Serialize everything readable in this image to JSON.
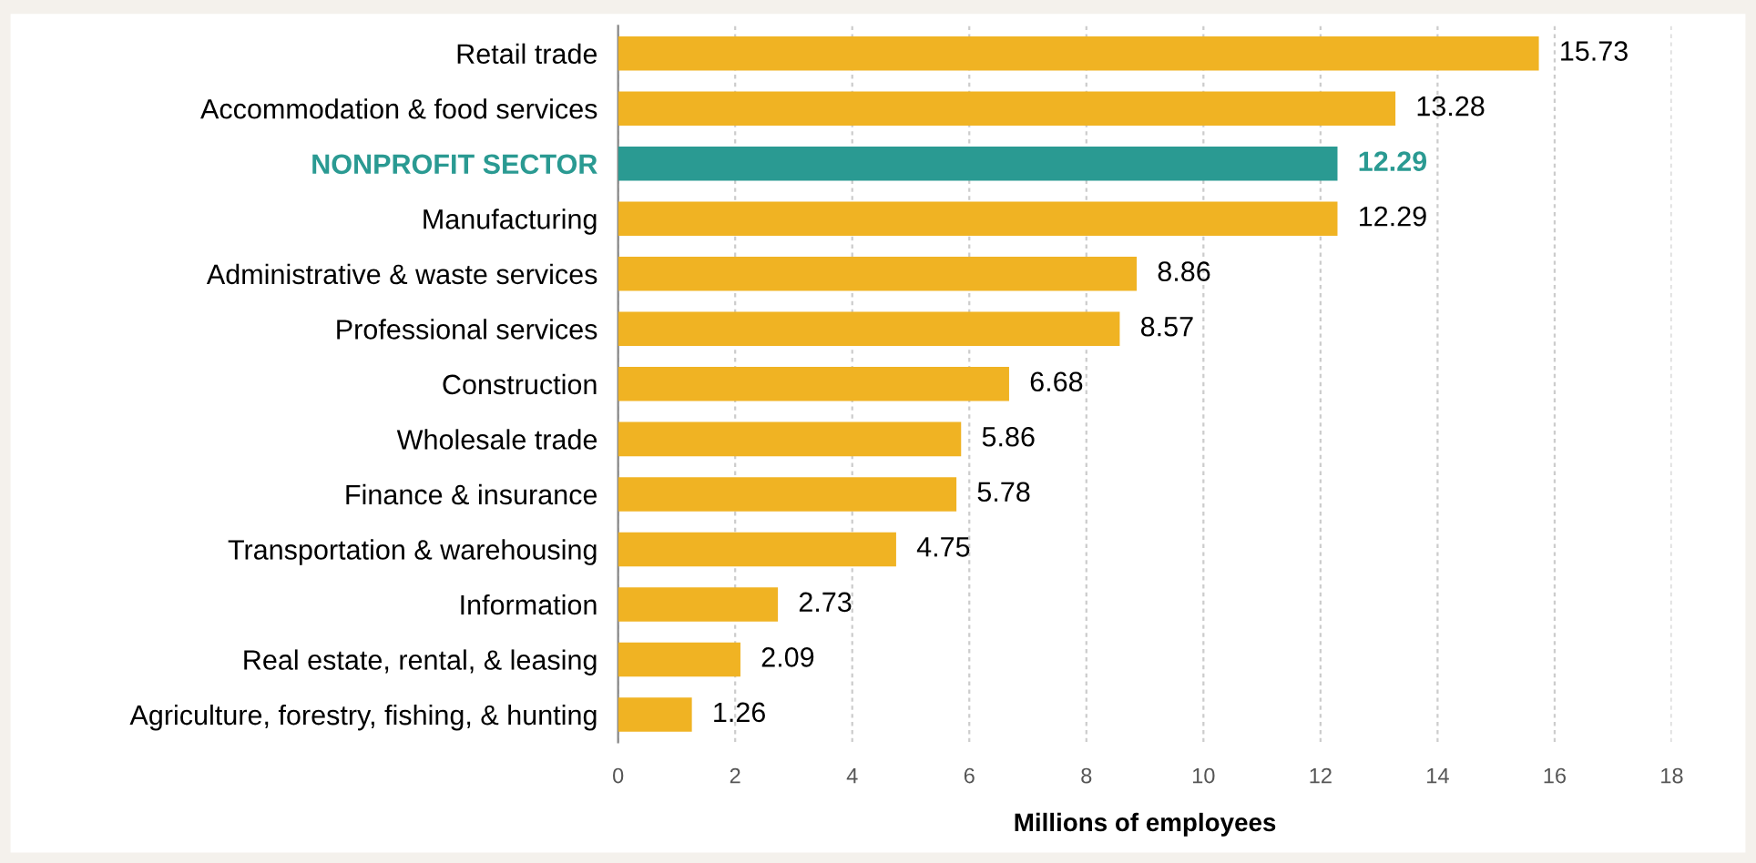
{
  "chart_data": {
    "type": "bar",
    "orientation": "horizontal",
    "xlabel": "Millions of employees",
    "categories": [
      "Retail trade",
      "Accommodation & food services",
      "NONPROFIT SECTOR",
      "Manufacturing",
      "Administrative & waste services",
      "Professional services",
      "Construction",
      "Wholesale trade",
      "Finance & insurance",
      "Transportation & warehousing",
      "Information",
      "Real estate, rental, & leasing",
      "Agriculture, forestry, fishing, & hunting"
    ],
    "values": [
      15.73,
      13.28,
      12.29,
      12.29,
      8.86,
      8.57,
      6.68,
      5.86,
      5.78,
      4.75,
      2.73,
      2.09,
      1.26
    ],
    "colors": [
      "#f0b323",
      "#f0b323",
      "#2a9a92",
      "#f0b323",
      "#f0b323",
      "#f0b323",
      "#f0b323",
      "#f0b323",
      "#f0b323",
      "#f0b323",
      "#f0b323",
      "#f0b323",
      "#f0b323"
    ],
    "xlim": [
      0,
      18
    ],
    "xticks": [
      0,
      2,
      4,
      6,
      8,
      10,
      12,
      14,
      16,
      18
    ],
    "grid": "x",
    "data_labels": true
  }
}
